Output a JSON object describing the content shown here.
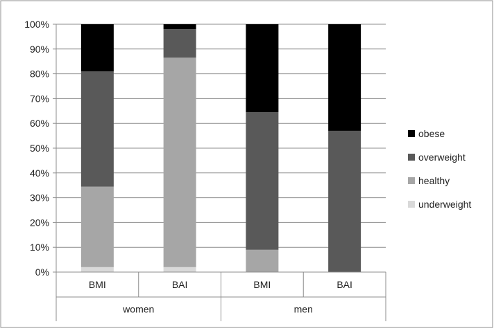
{
  "chart_data": {
    "type": "bar",
    "stacked": true,
    "normalized": true,
    "groups": [
      {
        "label": "women",
        "categories": [
          "BMI",
          "BAI"
        ]
      },
      {
        "label": "men",
        "categories": [
          "BMI",
          "BAI"
        ]
      }
    ],
    "categories": [
      "BMI",
      "BAI",
      "BMI",
      "BAI"
    ],
    "series": [
      {
        "name": "underweight",
        "color": "#d9d9d9",
        "values": [
          2,
          2,
          0,
          0
        ]
      },
      {
        "name": "healthy",
        "color": "#a6a6a6",
        "values": [
          32.5,
          84.5,
          9,
          0
        ]
      },
      {
        "name": "overweight",
        "color": "#595959",
        "values": [
          46.5,
          11.5,
          55.5,
          57
        ]
      },
      {
        "name": "obese",
        "color": "#000000",
        "values": [
          19,
          2,
          35.5,
          43
        ]
      }
    ],
    "ylim": [
      0,
      100
    ],
    "yticks": [
      "0%",
      "10%",
      "20%",
      "30%",
      "40%",
      "50%",
      "60%",
      "70%",
      "80%",
      "90%",
      "100%"
    ],
    "grid": true,
    "legend_position": "right",
    "legend_order": [
      "obese",
      "overweight",
      "healthy",
      "underweight"
    ]
  }
}
